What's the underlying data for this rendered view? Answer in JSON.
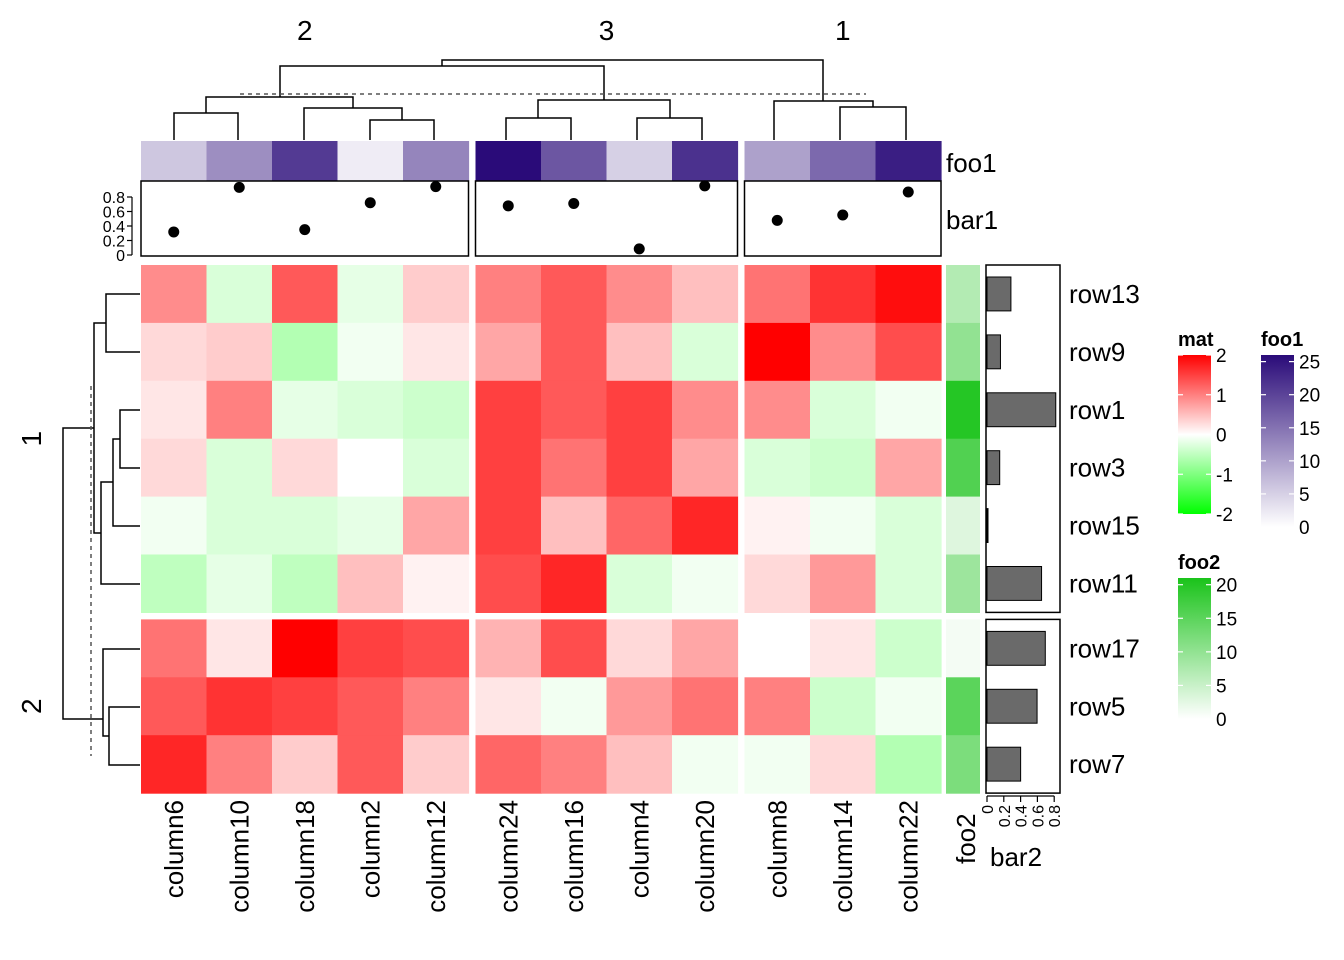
{
  "chart_data": {
    "type": "heatmap",
    "column_groups": [
      {
        "label": "2",
        "columns": [
          "column6",
          "column10",
          "column18",
          "column2",
          "column12"
        ]
      },
      {
        "label": "3",
        "columns": [
          "column24",
          "column16",
          "column4",
          "column20"
        ]
      },
      {
        "label": "1",
        "columns": [
          "column8",
          "column14",
          "column22"
        ]
      }
    ],
    "row_groups": [
      {
        "label": "1",
        "rows": [
          "row13",
          "row9",
          "row1",
          "row3",
          "row15",
          "row11"
        ]
      },
      {
        "label": "2",
        "rows": [
          "row17",
          "row5",
          "row7"
        ]
      }
    ],
    "columns": [
      "column6",
      "column10",
      "column18",
      "column2",
      "column12",
      "column24",
      "column16",
      "column4",
      "column20",
      "column8",
      "column14",
      "column22"
    ],
    "rows": [
      "row13",
      "row9",
      "row1",
      "row3",
      "row15",
      "row11",
      "row17",
      "row5",
      "row7"
    ],
    "matrix": {
      "name": "mat",
      "values": [
        [
          0.9,
          -0.3,
          1.3,
          -0.2,
          0.4,
          1.0,
          1.3,
          0.9,
          0.5,
          1.1,
          1.6,
          1.9
        ],
        [
          0.3,
          0.4,
          -0.6,
          -0.1,
          0.2,
          0.7,
          1.3,
          0.5,
          -0.3,
          2.0,
          0.9,
          1.4
        ],
        [
          0.2,
          1.0,
          -0.2,
          -0.3,
          -0.4,
          1.5,
          1.3,
          1.5,
          0.9,
          0.9,
          -0.3,
          -0.1
        ],
        [
          0.3,
          -0.3,
          0.3,
          0.0,
          -0.3,
          1.5,
          1.1,
          1.5,
          0.7,
          -0.3,
          -0.4,
          0.7
        ],
        [
          -0.1,
          -0.3,
          -0.3,
          -0.2,
          0.7,
          1.5,
          0.5,
          1.2,
          1.7,
          0.1,
          -0.1,
          -0.3
        ],
        [
          -0.5,
          -0.2,
          -0.5,
          0.5,
          0.1,
          1.4,
          1.7,
          -0.3,
          -0.1,
          0.3,
          0.8,
          -0.3
        ],
        [
          1.1,
          0.2,
          2.0,
          1.5,
          1.4,
          0.6,
          1.4,
          0.3,
          0.7,
          0.0,
          0.2,
          -0.4
        ],
        [
          1.3,
          1.6,
          1.5,
          1.3,
          1.0,
          0.2,
          -0.1,
          0.8,
          1.1,
          1.0,
          -0.4,
          -0.1
        ],
        [
          1.7,
          1.0,
          0.4,
          1.3,
          0.4,
          1.2,
          1.0,
          0.5,
          -0.1,
          -0.1,
          0.3,
          -0.6
        ]
      ],
      "legend": {
        "title": "mat",
        "ticks": [
          "2",
          "1",
          "0",
          "-1",
          "-2"
        ],
        "range": [
          -2,
          2
        ],
        "low_color": "#00ff00",
        "mid_color": "#ffffff",
        "high_color": "#ff0000"
      }
    },
    "top_annotation": {
      "foo1": {
        "name": "foo1",
        "values": [
          6,
          12,
          21,
          2,
          13,
          26,
          18,
          5,
          22,
          10,
          16,
          24
        ],
        "legend": {
          "title": "foo1",
          "ticks": [
            "25",
            "20",
            "15",
            "10",
            "5",
            "0"
          ],
          "range": [
            0,
            26
          ],
          "low_color": "#ffffff",
          "high_color": "#2a0b79"
        }
      },
      "bar1": {
        "name": "bar1",
        "values": [
          0.3,
          0.88,
          0.33,
          0.68,
          0.89,
          0.64,
          0.67,
          0.08,
          0.9,
          0.45,
          0.52,
          0.82
        ],
        "ylim": [
          0,
          0.95
        ],
        "ticks": [
          "0",
          "0.2",
          "0.4",
          "0.6",
          "0.8"
        ]
      }
    },
    "right_annotation": {
      "foo2": {
        "name": "foo2",
        "values": [
          7,
          10,
          20,
          16,
          3,
          9,
          1,
          15,
          12
        ],
        "legend": {
          "title": "foo2",
          "ticks": [
            "20",
            "15",
            "10",
            "5",
            "0"
          ],
          "range": [
            0,
            21
          ],
          "low_color": "#ffffff",
          "high_color": "#1ac31a"
        }
      },
      "bar2": {
        "name": "bar2",
        "values": [
          0.32,
          0.18,
          0.92,
          0.17,
          0.01,
          0.73,
          0.78,
          0.67,
          0.45
        ],
        "xlim": [
          0,
          0.95
        ],
        "ticks": [
          "0",
          "0.2",
          "0.4",
          "0.6",
          "0.8"
        ]
      }
    }
  }
}
